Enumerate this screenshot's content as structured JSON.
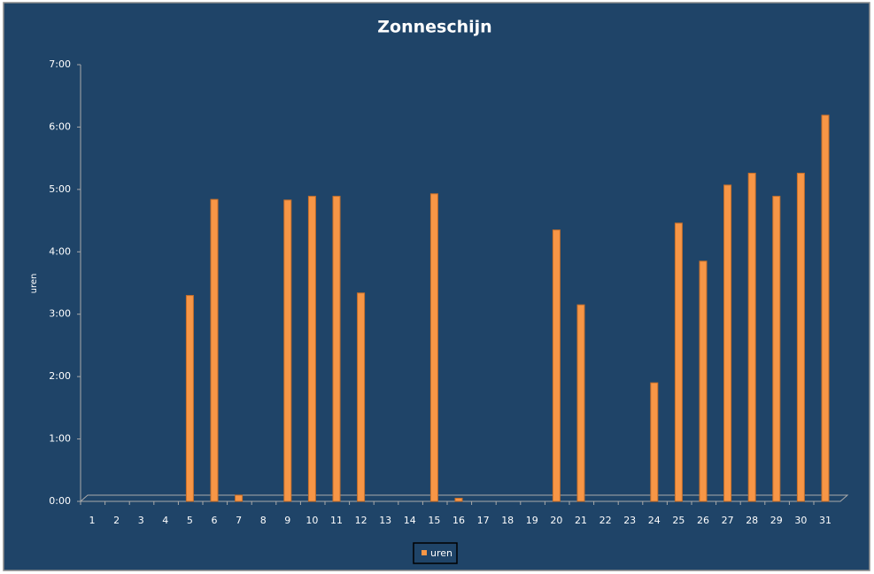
{
  "chart_data": {
    "type": "bar",
    "title": "Zonneschijn",
    "ylabel": "uren",
    "categories": [
      "1",
      "2",
      "3",
      "4",
      "5",
      "6",
      "7",
      "8",
      "9",
      "10",
      "11",
      "12",
      "13",
      "14",
      "15",
      "16",
      "17",
      "18",
      "19",
      "20",
      "21",
      "22",
      "23",
      "24",
      "25",
      "26",
      "27",
      "28",
      "29",
      "30",
      "31"
    ],
    "series": [
      {
        "name": "uren",
        "color": "#f79646",
        "values": [
          0,
          0,
          0,
          0,
          3.3,
          4.84,
          0.1,
          0,
          4.83,
          4.89,
          4.89,
          3.34,
          0,
          0,
          4.93,
          0.05,
          0,
          0,
          0,
          4.35,
          3.15,
          0,
          0,
          1.9,
          4.46,
          3.85,
          5.07,
          5.26,
          4.89,
          5.26,
          6.19
        ]
      }
    ],
    "ylim": [
      0,
      7
    ],
    "yticks": [
      {
        "value": 0,
        "label": "0:00"
      },
      {
        "value": 1,
        "label": "1:00"
      },
      {
        "value": 2,
        "label": "2:00"
      },
      {
        "value": 3,
        "label": "3:00"
      },
      {
        "value": 4,
        "label": "4:00"
      },
      {
        "value": 5,
        "label": "5:00"
      },
      {
        "value": 6,
        "label": "6:00"
      },
      {
        "value": 7,
        "label": "7:00"
      }
    ],
    "legend": "bottom"
  }
}
